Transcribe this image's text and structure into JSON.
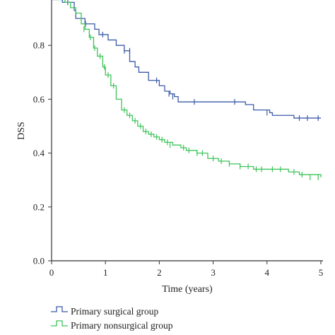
{
  "chart_data": {
    "type": "line",
    "step": true,
    "xlabel": "Time (years)",
    "ylabel": "DSS",
    "xlim": [
      0,
      5
    ],
    "ylim": [
      0,
      1.0
    ],
    "xticks": [
      0,
      1,
      2,
      3,
      4,
      5
    ],
    "xtick_labels": [
      "0",
      "1",
      "2",
      "3",
      "4",
      "5"
    ],
    "yticks": [
      0.0,
      0.2,
      0.4,
      0.6,
      0.8
    ],
    "ytick_labels": [
      "0.0",
      "0.2",
      "0.4",
      "0.6",
      "0.8"
    ],
    "grid": false,
    "legend_position": "bottom",
    "series": [
      {
        "name": "Primary surgical group",
        "color": "#3b5ba9",
        "x": [
          0,
          0.2,
          0.42,
          0.45,
          0.62,
          0.8,
          0.88,
          1.05,
          1.2,
          1.35,
          1.45,
          1.55,
          1.62,
          1.8,
          2.0,
          2.1,
          2.2,
          2.28,
          2.35,
          3.05,
          3.5,
          3.6,
          3.75,
          4.05,
          4.1,
          4.5,
          5.0
        ],
        "y": [
          0.97,
          0.96,
          0.93,
          0.9,
          0.88,
          0.86,
          0.84,
          0.82,
          0.8,
          0.78,
          0.74,
          0.72,
          0.7,
          0.67,
          0.65,
          0.63,
          0.62,
          0.61,
          0.59,
          0.59,
          0.59,
          0.58,
          0.56,
          0.55,
          0.54,
          0.53,
          0.53
        ],
        "censor_x": [
          0.3,
          0.63,
          0.95,
          1.35,
          1.45,
          1.95,
          2.18,
          2.25,
          2.65,
          3.4,
          4.0,
          4.6,
          4.75,
          4.95
        ],
        "censor_y": [
          0.96,
          0.88,
          0.84,
          0.78,
          0.78,
          0.67,
          0.62,
          0.61,
          0.59,
          0.59,
          0.55,
          0.53,
          0.53,
          0.53
        ]
      },
      {
        "name": "Primary nonsurgical group",
        "color": "#3fc45a",
        "x": [
          0,
          0.25,
          0.35,
          0.45,
          0.55,
          0.62,
          0.7,
          0.78,
          0.85,
          0.95,
          1.0,
          1.1,
          1.2,
          1.3,
          1.4,
          1.5,
          1.6,
          1.7,
          1.8,
          1.9,
          2.0,
          2.1,
          2.25,
          2.4,
          2.5,
          2.7,
          2.9,
          3.1,
          3.3,
          3.5,
          3.75,
          4.2,
          4.4,
          4.6,
          5.0
        ],
        "y": [
          0.97,
          0.96,
          0.94,
          0.92,
          0.88,
          0.86,
          0.83,
          0.79,
          0.76,
          0.72,
          0.69,
          0.65,
          0.6,
          0.56,
          0.54,
          0.52,
          0.5,
          0.48,
          0.47,
          0.46,
          0.45,
          0.44,
          0.43,
          0.42,
          0.41,
          0.4,
          0.38,
          0.37,
          0.36,
          0.35,
          0.34,
          0.34,
          0.33,
          0.32,
          0.31
        ],
        "censor_x": [
          0.6,
          0.72,
          0.8,
          0.9,
          0.98,
          1.05,
          1.15,
          1.35,
          1.45,
          1.55,
          1.65,
          1.75,
          1.85,
          1.95,
          2.05,
          2.15,
          2.2,
          2.45,
          2.55,
          2.7,
          2.8,
          3.0,
          3.15,
          3.3,
          3.5,
          3.65,
          3.8,
          3.9,
          4.1,
          4.25,
          4.5,
          4.65,
          4.8,
          4.95
        ],
        "censor_y": [
          0.86,
          0.83,
          0.79,
          0.76,
          0.72,
          0.69,
          0.65,
          0.56,
          0.54,
          0.52,
          0.5,
          0.48,
          0.47,
          0.46,
          0.45,
          0.44,
          0.43,
          0.42,
          0.41,
          0.4,
          0.4,
          0.38,
          0.37,
          0.36,
          0.35,
          0.35,
          0.34,
          0.34,
          0.34,
          0.34,
          0.33,
          0.32,
          0.31,
          0.31
        ]
      }
    ]
  }
}
